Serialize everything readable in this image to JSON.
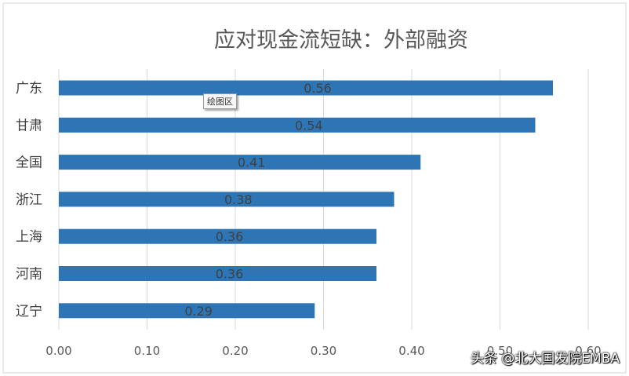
{
  "chart_data": {
    "type": "bar",
    "orientation": "horizontal",
    "title": "应对现金流短缺：外部融资",
    "categories": [
      "广东",
      "甘肃",
      "全国",
      "浙江",
      "上海",
      "河南",
      "辽宁"
    ],
    "values": [
      0.56,
      0.54,
      0.41,
      0.38,
      0.36,
      0.36,
      0.29
    ],
    "data_labels": [
      "0.56",
      "0.54",
      "0.41",
      "0.38",
      "0.36",
      "0.36",
      "0.29"
    ],
    "xlim": [
      0,
      0.6
    ],
    "x_ticks": [
      "0.00",
      "0.10",
      "0.20",
      "0.30",
      "0.40",
      "0.50",
      "0.60"
    ],
    "grid": true,
    "bar_color": "#2E75B6"
  },
  "tooltip": "绘图区",
  "watermark": "头条 @北大国发院EMBA"
}
